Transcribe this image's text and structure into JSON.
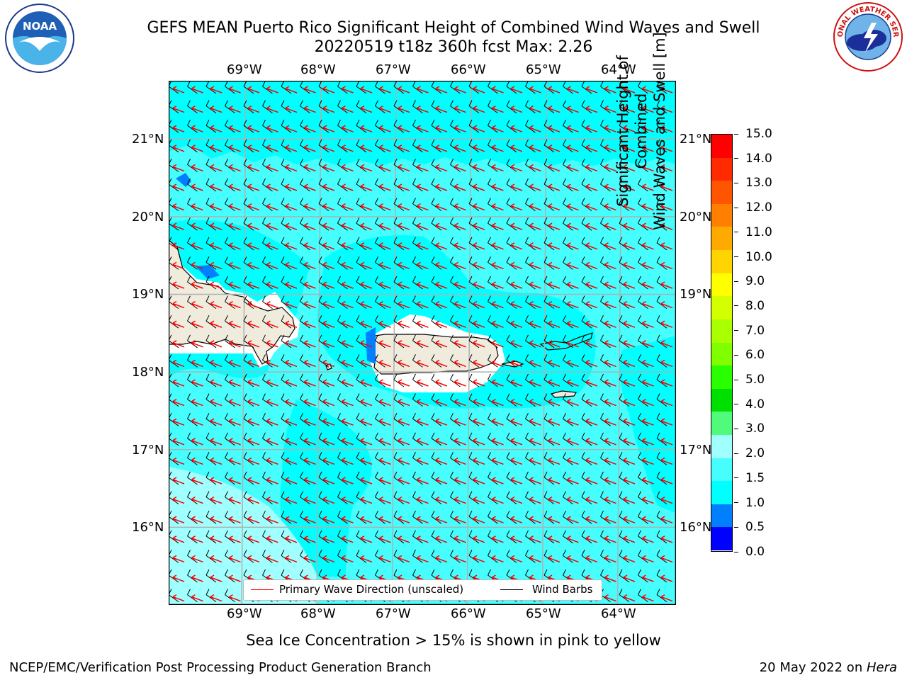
{
  "header": {
    "title_line1": "GEFS MEAN Puerto Rico Significant Height of Combined Wind Waves and Swell",
    "title_line2": "20220519 t18z 360h fcst   Max: 2.26"
  },
  "logos": {
    "left": {
      "icon": "noaa-logo-icon",
      "text": "NOAA"
    },
    "right": {
      "icon": "nws-logo-icon",
      "text": "NATIONAL WEATHER SERVICE"
    }
  },
  "map": {
    "lon_labels": [
      "69°W",
      "68°W",
      "67°W",
      "66°W",
      "65°W",
      "64°W"
    ],
    "lat_labels": [
      "21°N",
      "20°N",
      "19°N",
      "18°N",
      "17°N",
      "16°N"
    ],
    "extent": {
      "lon_min": -70.0,
      "lon_max": -63.25,
      "lat_min": 15.0,
      "lat_max": 21.75
    },
    "colors": {
      "land": "#efebdd",
      "wave_1_0_1_5": "#00ffff",
      "wave_1_5_2_0": "#46fefe",
      "wave_2_0_3_0": "#a0ffff",
      "wave_0_5_1_0": "#0080ff",
      "wave_arrow": "#ff0000",
      "wind_barb": "#000000",
      "grid": "#b0b0b0"
    }
  },
  "legend": {
    "wave_label": "Primary Wave Direction (unscaled)",
    "barb_label": "Wind Barbs"
  },
  "colorbar": {
    "label_line1": "Significant Height of Combined",
    "label_line2": "Wind Waves and Swell [m]",
    "ticks": [
      "15.0",
      "14.0",
      "13.0",
      "12.0",
      "11.0",
      "10.0",
      "9.0",
      "8.0",
      "7.0",
      "6.0",
      "5.0",
      "4.0",
      "3.0",
      "2.0",
      "1.5",
      "1.0",
      "0.5",
      "0.0"
    ],
    "colors": [
      "#ff0000",
      "#ff2a00",
      "#ff5400",
      "#ff8000",
      "#ffaa00",
      "#ffd400",
      "#ffff00",
      "#d4ff00",
      "#aaff00",
      "#80ff00",
      "#2aff00",
      "#00e000",
      "#50fa7b",
      "#a0ffff",
      "#46fefe",
      "#00ffff",
      "#0080ff",
      "#0000ff"
    ]
  },
  "footer": {
    "note": "Sea Ice Concentration > 15% is shown in pink to yellow",
    "left": "NCEP/EMC/Verification Post Processing Product Generation Branch",
    "date": "20 May 2022 on ",
    "host": "Hera"
  }
}
